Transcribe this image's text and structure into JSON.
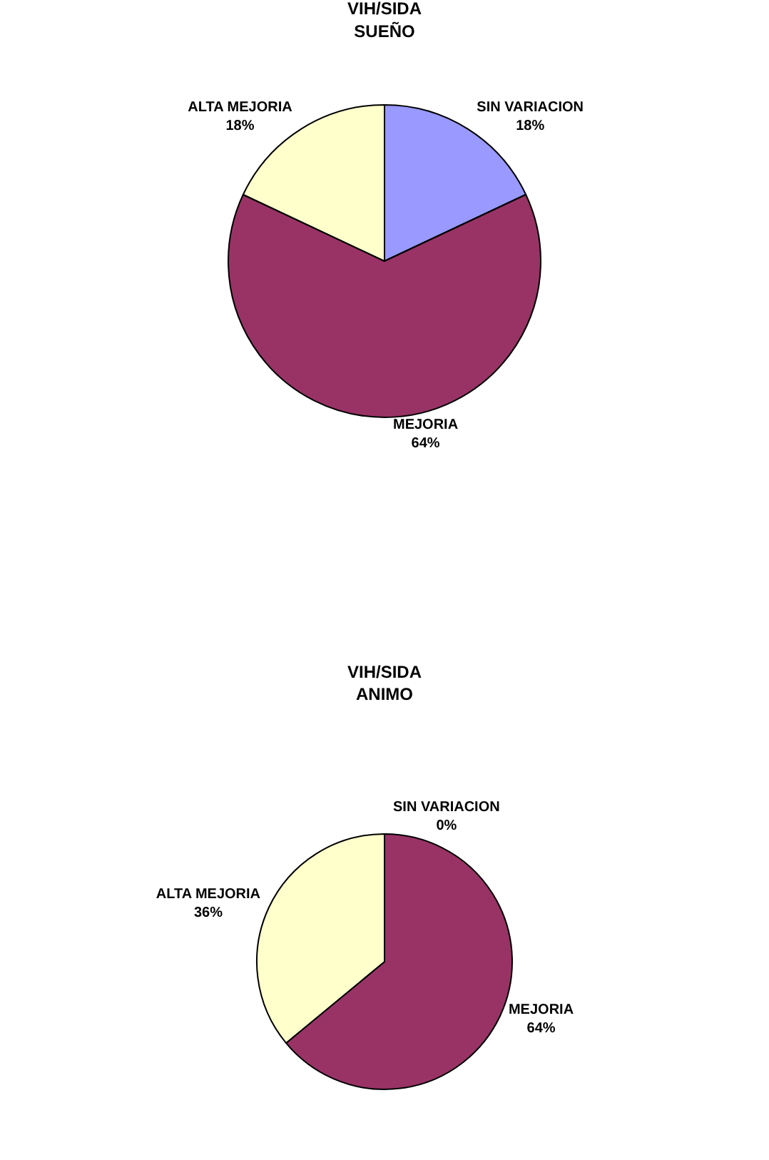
{
  "chart_data": [
    {
      "type": "pie",
      "title": "VIH/SIDA\nSUEÑO",
      "categories": [
        "SIN VARIACION",
        "MEJORIA",
        "ALTA MEJORIA"
      ],
      "values": [
        18,
        64,
        18
      ],
      "value_labels": [
        "18%",
        "64%",
        "18%"
      ],
      "colors": [
        "#9999ff",
        "#993366",
        "#ffffcc"
      ]
    },
    {
      "type": "pie",
      "title": "VIH/SIDA\nANIMO",
      "categories": [
        "SIN VARIACION",
        "MEJORIA",
        "ALTA MEJORIA"
      ],
      "values": [
        0,
        64,
        36
      ],
      "value_labels": [
        "0%",
        "64%",
        "36%"
      ],
      "colors": [
        "#9999ff",
        "#993366",
        "#ffffcc"
      ]
    }
  ]
}
